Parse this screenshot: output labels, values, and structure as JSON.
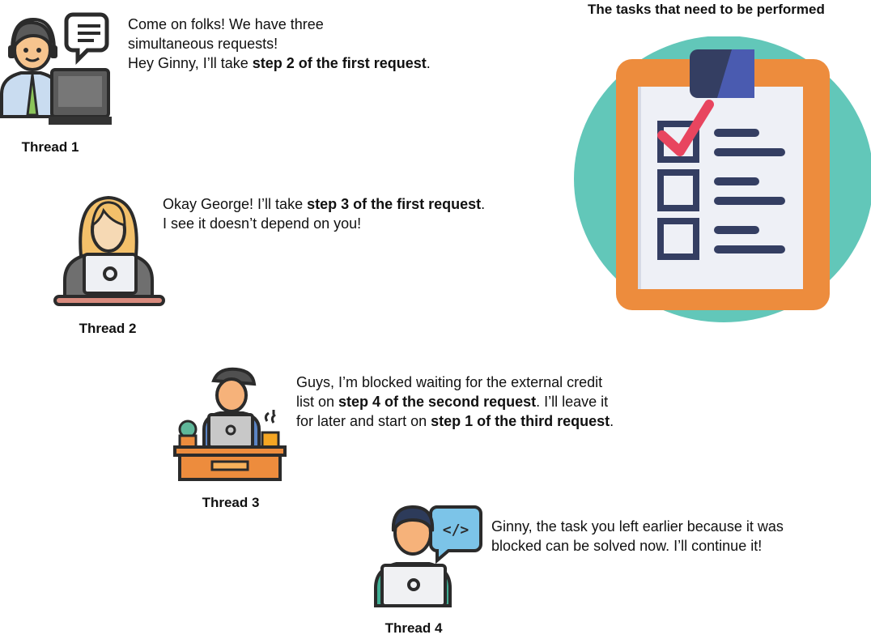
{
  "title": "The tasks that need to be performed",
  "threads": [
    {
      "label": "Thread 1",
      "speech": [
        "Come on folks! We have three",
        "simultaneous requests!",
        "Hey Ginny, I’ll take ",
        "step 2 of the first request",
        "."
      ]
    },
    {
      "label": "Thread 2",
      "speech": [
        "Okay George! I’ll take ",
        "step 3 of the first request",
        ".",
        "I see it doesn’t depend on you!"
      ]
    },
    {
      "label": "Thread 3",
      "speech": [
        "Guys, I’m blocked waiting for the external credit",
        "list on ",
        "step 4 of the second request",
        ". I’ll leave it",
        "for later and start on ",
        "step 1 of the third request",
        "."
      ]
    },
    {
      "label": "Thread 4",
      "speech": [
        "Ginny, the task you left earlier because it was",
        "blocked can be solved now. I’ll continue it!"
      ]
    }
  ],
  "icons": [
    "support-agent-icon",
    "woman-laptop-icon",
    "man-desk-icon",
    "developer-code-icon",
    "checklist-clipboard-icon"
  ],
  "colors": {
    "teal": "#62c7b9",
    "orange": "#ed8c3d",
    "navy": "#343e62",
    "check": "#e8455f",
    "skin": "#f6c48e",
    "laptop": "#e6e9ef"
  }
}
